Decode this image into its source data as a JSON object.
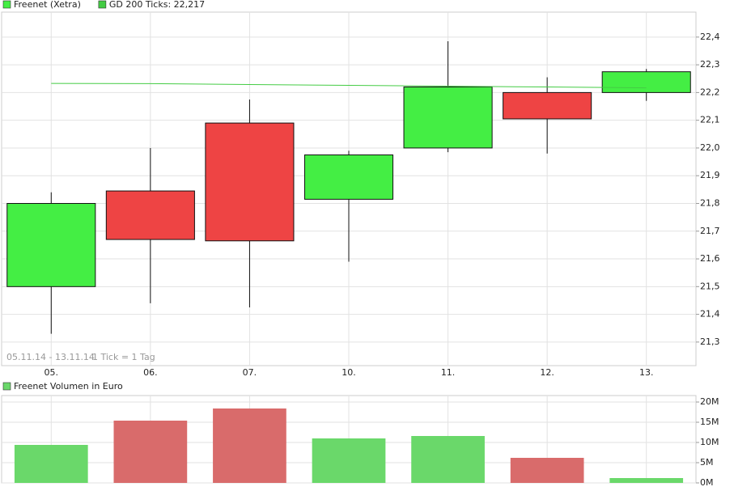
{
  "chart_data": [
    {
      "type": "candlestick",
      "categories": [
        "05.",
        "06.",
        "07.",
        "10.",
        "11.",
        "12.",
        "13."
      ],
      "series": [
        {
          "name": "Freenet (Xetra)",
          "color": "#44ee44",
          "up_color": "#44ee44",
          "down_color": "#ee4444",
          "open": [
            21.5,
            21.845,
            22.09,
            21.815,
            22.0,
            22.2,
            22.2
          ],
          "high": [
            21.84,
            22.0,
            22.175,
            21.99,
            22.385,
            22.255,
            22.285
          ],
          "low": [
            21.33,
            21.44,
            21.425,
            21.59,
            21.985,
            21.98,
            22.17
          ],
          "close": [
            21.8,
            21.67,
            21.665,
            21.975,
            22.22,
            22.105,
            22.275
          ]
        },
        {
          "name": "GD 200 Ticks: 22,217",
          "type": "line",
          "color": "#44cc44",
          "values": [
            22.233,
            22.232,
            22.229,
            22.226,
            22.223,
            22.22,
            22.217
          ]
        }
      ],
      "ylim": [
        21.215,
        22.49
      ],
      "yticks": [
        {
          "value": 21.3,
          "label": "21,3"
        },
        {
          "value": 21.4,
          "label": "21,4"
        },
        {
          "value": 21.5,
          "label": "21,5"
        },
        {
          "value": 21.6,
          "label": "21,6"
        },
        {
          "value": 21.7,
          "label": "21,7"
        },
        {
          "value": 21.8,
          "label": "21,8"
        },
        {
          "value": 21.9,
          "label": "21,9"
        },
        {
          "value": 22.0,
          "label": "22,0"
        },
        {
          "value": 22.1,
          "label": "22,1"
        },
        {
          "value": 22.2,
          "label": "22,2"
        },
        {
          "value": 22.3,
          "label": "22,3"
        },
        {
          "value": 22.4,
          "label": "22,4"
        }
      ],
      "annotations": [
        "05.11.14 - 13.11.14",
        "1 Tick = 1 Tag"
      ],
      "grid": true
    },
    {
      "type": "bar",
      "categories": [
        "05.",
        "06.",
        "07.",
        "10.",
        "11.",
        "12.",
        "13."
      ],
      "series": [
        {
          "name": "Freenet Volumen in Euro",
          "color": "#6ad86a",
          "colors": [
            "#6ad86a",
            "#d96b6b",
            "#d96b6b",
            "#6ad86a",
            "#6ad86a",
            "#d96b6b",
            "#6ad86a"
          ],
          "values": [
            9400000,
            15400000,
            18400000,
            11000000,
            11600000,
            6200000,
            1200000
          ]
        }
      ],
      "ylim": [
        0,
        21600000
      ],
      "yticks": [
        {
          "value": 0,
          "label": "0M"
        },
        {
          "value": 5000000,
          "label": "5M"
        },
        {
          "value": 10000000,
          "label": "10M"
        },
        {
          "value": 15000000,
          "label": "15M"
        },
        {
          "value": 20000000,
          "label": "20M"
        }
      ],
      "grid": true
    }
  ]
}
